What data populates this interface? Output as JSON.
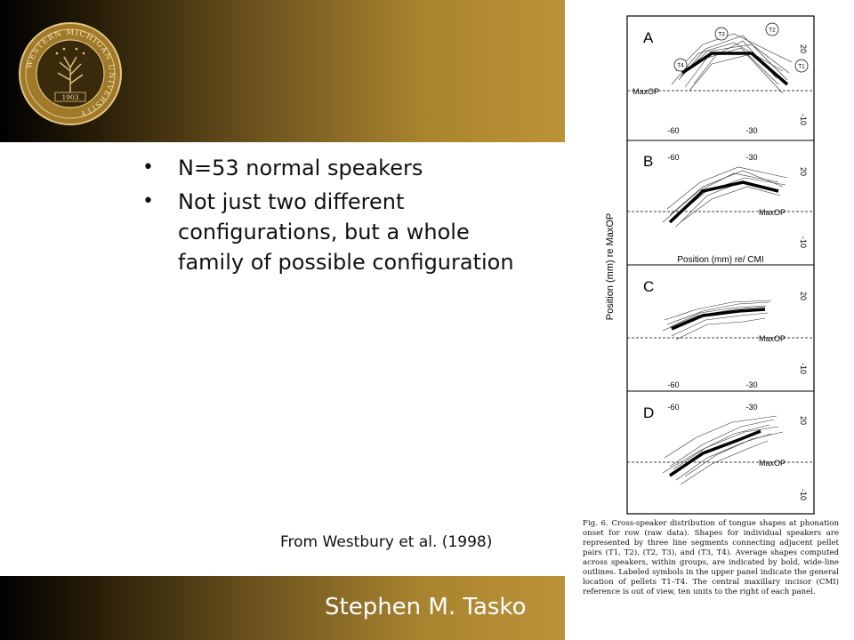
{
  "slide": {
    "bullets": [
      "N=53 normal speakers",
      "Not just two different configurations, but a whole family of possible configuration"
    ],
    "credit": "From Westbury et al. (1998)",
    "author": "Stephen M. Tasko"
  },
  "seal": {
    "ring_text": "WESTERN MICHIGAN UNIVERSITY",
    "year": "1903"
  },
  "figure": {
    "y_axis_label": "Position (mm) re MaxOP",
    "x_axis_label": "Position (mm) re/ CMI",
    "reference_label": "MaxOP",
    "x_ticks": [
      "-60",
      "-30"
    ],
    "y_ticks": [
      "20",
      "-10"
    ],
    "pellet_labels": [
      "T4",
      "T3",
      "T2",
      "T1"
    ],
    "panels": [
      {
        "letter": "A"
      },
      {
        "letter": "B"
      },
      {
        "letter": "C"
      },
      {
        "letter": "D"
      }
    ],
    "caption": "Fig. 6. Cross-speaker distribution of tongue shapes at phonation onset for row (raw data). Shapes for individual speakers are represented by three line segments connecting adjacent pellet pairs (T1, T2), (T2, T3), and (T3, T4). Average shapes computed across speakers, within groups, are indicated by bold, wide-line outlines. Labeled symbols in the upper panel indicate the general location of pellets T1–T4. The central maxillary incisor (CMI) reference is out of view, ten units to the right of each panel."
  },
  "colors": {
    "band_dark": "#000000",
    "band_gold": "#bc9236",
    "seal_gold": "#d7b86a"
  }
}
